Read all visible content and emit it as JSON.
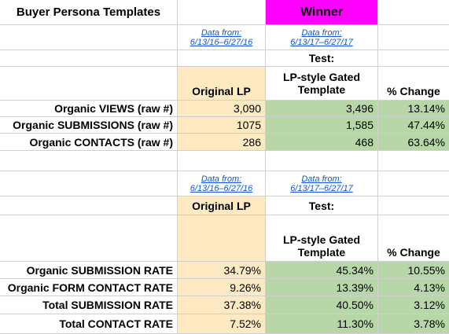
{
  "title": "Buyer Persona Templates",
  "winner_label": "Winner",
  "section1": {
    "data_from_original": [
      "Data from:",
      "6/13/16–6/27/16"
    ],
    "data_from_test": [
      "Data from:",
      "6/13/17–6/27/17"
    ],
    "test_label": "Test:",
    "col_original": "Original LP",
    "col_test": [
      "LP-style Gated",
      "Template"
    ],
    "col_change": "% Change",
    "rows": [
      {
        "label": "Organic VIEWS (raw #)",
        "original": "3,090",
        "test": "3,496",
        "change": "13.14%"
      },
      {
        "label": "Organic SUBMISSIONS (raw #)",
        "original": "1075",
        "test": "1,585",
        "change": "47.44%"
      },
      {
        "label": "Organic CONTACTS (raw #)",
        "original": "286",
        "test": "468",
        "change": "63.64%"
      }
    ]
  },
  "section2": {
    "data_from_original": [
      "Data from:",
      "6/13/16–6/27/16"
    ],
    "data_from_test": [
      "Data from:",
      "6/13/17–6/27/17"
    ],
    "col_original": "Original LP",
    "test_label": "Test:",
    "col_test": [
      "LP-style Gated",
      "Template"
    ],
    "col_change": "% Change",
    "rows": [
      {
        "label": "Organic SUBMISSION RATE",
        "original": "34.79%",
        "test": "45.34%",
        "change": "10.55%"
      },
      {
        "label": "Organic FORM CONTACT RATE",
        "original": "9.26%",
        "test": "13.39%",
        "change": "4.13%"
      },
      {
        "label": "Total SUBMISSION RATE",
        "original": "37.38%",
        "test": "40.50%",
        "change": "3.12%"
      },
      {
        "label": "Total CONTACT RATE",
        "original": "7.52%",
        "test": "11.30%",
        "change": "3.78%"
      }
    ]
  },
  "colors": {
    "original_fill": "#fde9c2",
    "test_fill": "#b7d7a8",
    "winner_fill": "#ff00ff",
    "link": "#1155cc",
    "grid": "#d0d0d0"
  }
}
